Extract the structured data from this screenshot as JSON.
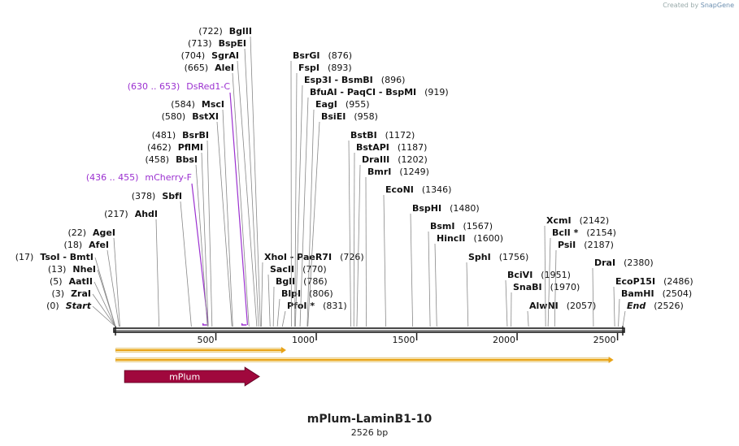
{
  "credit": {
    "prefix": "Created by",
    "brand": "SnapGene"
  },
  "map": {
    "name": "mPlum-LaminB1-10",
    "length_label": "2526 bp",
    "length": 2526
  },
  "colors": {
    "primer": "#9b30d0",
    "feature": "#a0083d",
    "orf_fill": "#e8a317",
    "orf_stroke": "#c8c8c8",
    "text": "#111111"
  },
  "ruler": {
    "ticks": [
      "500",
      "1000",
      "1500",
      "2000",
      "2500"
    ]
  },
  "features": [
    {
      "label": "mPlum",
      "start": 37,
      "end": 717,
      "direction": "forward"
    }
  ],
  "orfs": [
    {
      "start": 1,
      "end": 850
    },
    {
      "start": 1,
      "end": 2480
    }
  ],
  "sites": [
    {
      "pos": 0,
      "name": "Start",
      "pos_label": "(0)",
      "italic": true
    },
    {
      "pos": 3,
      "name": "ZraI",
      "pos_label": "(3)"
    },
    {
      "pos": 5,
      "name": "AatII",
      "pos_label": "(5)"
    },
    {
      "pos": 13,
      "name": "NheI",
      "pos_label": "(13)"
    },
    {
      "pos": 17,
      "name": "TsoI - BmtI",
      "pos_label": "(17)"
    },
    {
      "pos": 18,
      "name": "AfeI",
      "pos_label": "(18)"
    },
    {
      "pos": 22,
      "name": "AgeI",
      "pos_label": "(22)"
    },
    {
      "pos": 217,
      "name": "AhdI",
      "pos_label": "(217)"
    },
    {
      "pos": 378,
      "name": "SbfI",
      "pos_label": "(378)"
    },
    {
      "pos": 445,
      "name": "mCherry-F",
      "pos_label": "(436 .. 455)",
      "primer": true
    },
    {
      "pos": 458,
      "name": "BbsI",
      "pos_label": "(458)"
    },
    {
      "pos": 462,
      "name": "PflMI",
      "pos_label": "(462)"
    },
    {
      "pos": 481,
      "name": "BsrBI",
      "pos_label": "(481)"
    },
    {
      "pos": 580,
      "name": "BstXI",
      "pos_label": "(580)"
    },
    {
      "pos": 584,
      "name": "MscI",
      "pos_label": "(584)"
    },
    {
      "pos": 641,
      "name": "DsRed1-C",
      "pos_label": "(630 .. 653)",
      "primer": true
    },
    {
      "pos": 665,
      "name": "AleI",
      "pos_label": "(665)"
    },
    {
      "pos": 704,
      "name": "SgrAI",
      "pos_label": "(704)"
    },
    {
      "pos": 713,
      "name": "BspEI",
      "pos_label": "(713)"
    },
    {
      "pos": 722,
      "name": "BglII",
      "pos_label": "(722)"
    },
    {
      "pos": 726,
      "name": "XhoI - PaeR7I",
      "pos_label": "(726)"
    },
    {
      "pos": 770,
      "name": "SacII",
      "pos_label": "(770)"
    },
    {
      "pos": 786,
      "name": "BglI",
      "pos_label": "(786)"
    },
    {
      "pos": 806,
      "name": "BlpI",
      "pos_label": "(806)"
    },
    {
      "pos": 831,
      "name": "PfoI *",
      "pos_label": "(831)"
    },
    {
      "pos": 876,
      "name": "BsrGI",
      "pos_label": "(876)"
    },
    {
      "pos": 893,
      "name": "FspI",
      "pos_label": "(893)"
    },
    {
      "pos": 896,
      "name": "Esp3I - BsmBI",
      "pos_label": "(896)"
    },
    {
      "pos": 919,
      "name": "BfuAI - PaqCI - BspMI",
      "pos_label": "(919)"
    },
    {
      "pos": 955,
      "name": "EagI",
      "pos_label": "(955)"
    },
    {
      "pos": 958,
      "name": "BsiEI",
      "pos_label": "(958)"
    },
    {
      "pos": 1172,
      "name": "BstBI",
      "pos_label": "(1172)"
    },
    {
      "pos": 1187,
      "name": "BstAPI",
      "pos_label": "(1187)"
    },
    {
      "pos": 1202,
      "name": "DraIII",
      "pos_label": "(1202)"
    },
    {
      "pos": 1249,
      "name": "BmrI",
      "pos_label": "(1249)"
    },
    {
      "pos": 1346,
      "name": "EcoNI",
      "pos_label": "(1346)"
    },
    {
      "pos": 1480,
      "name": "BspHI",
      "pos_label": "(1480)"
    },
    {
      "pos": 1567,
      "name": "BsmI",
      "pos_label": "(1567)"
    },
    {
      "pos": 1600,
      "name": "HincII",
      "pos_label": "(1600)"
    },
    {
      "pos": 1756,
      "name": "SphI",
      "pos_label": "(1756)"
    },
    {
      "pos": 1951,
      "name": "BciVI",
      "pos_label": "(1951)"
    },
    {
      "pos": 1970,
      "name": "SnaBI",
      "pos_label": "(1970)"
    },
    {
      "pos": 2057,
      "name": "AlwNI",
      "pos_label": "(2057)"
    },
    {
      "pos": 2142,
      "name": "XcmI",
      "pos_label": "(2142)"
    },
    {
      "pos": 2154,
      "name": "BclI *",
      "pos_label": "(2154)"
    },
    {
      "pos": 2187,
      "name": "PsiI",
      "pos_label": "(2187)"
    },
    {
      "pos": 2380,
      "name": "DraI",
      "pos_label": "(2380)"
    },
    {
      "pos": 2486,
      "name": "EcoP15I",
      "pos_label": "(2486)"
    },
    {
      "pos": 2504,
      "name": "BamHI",
      "pos_label": "(2504)"
    },
    {
      "pos": 2526,
      "name": "End",
      "pos_label": "(2526)",
      "italic": true
    }
  ]
}
